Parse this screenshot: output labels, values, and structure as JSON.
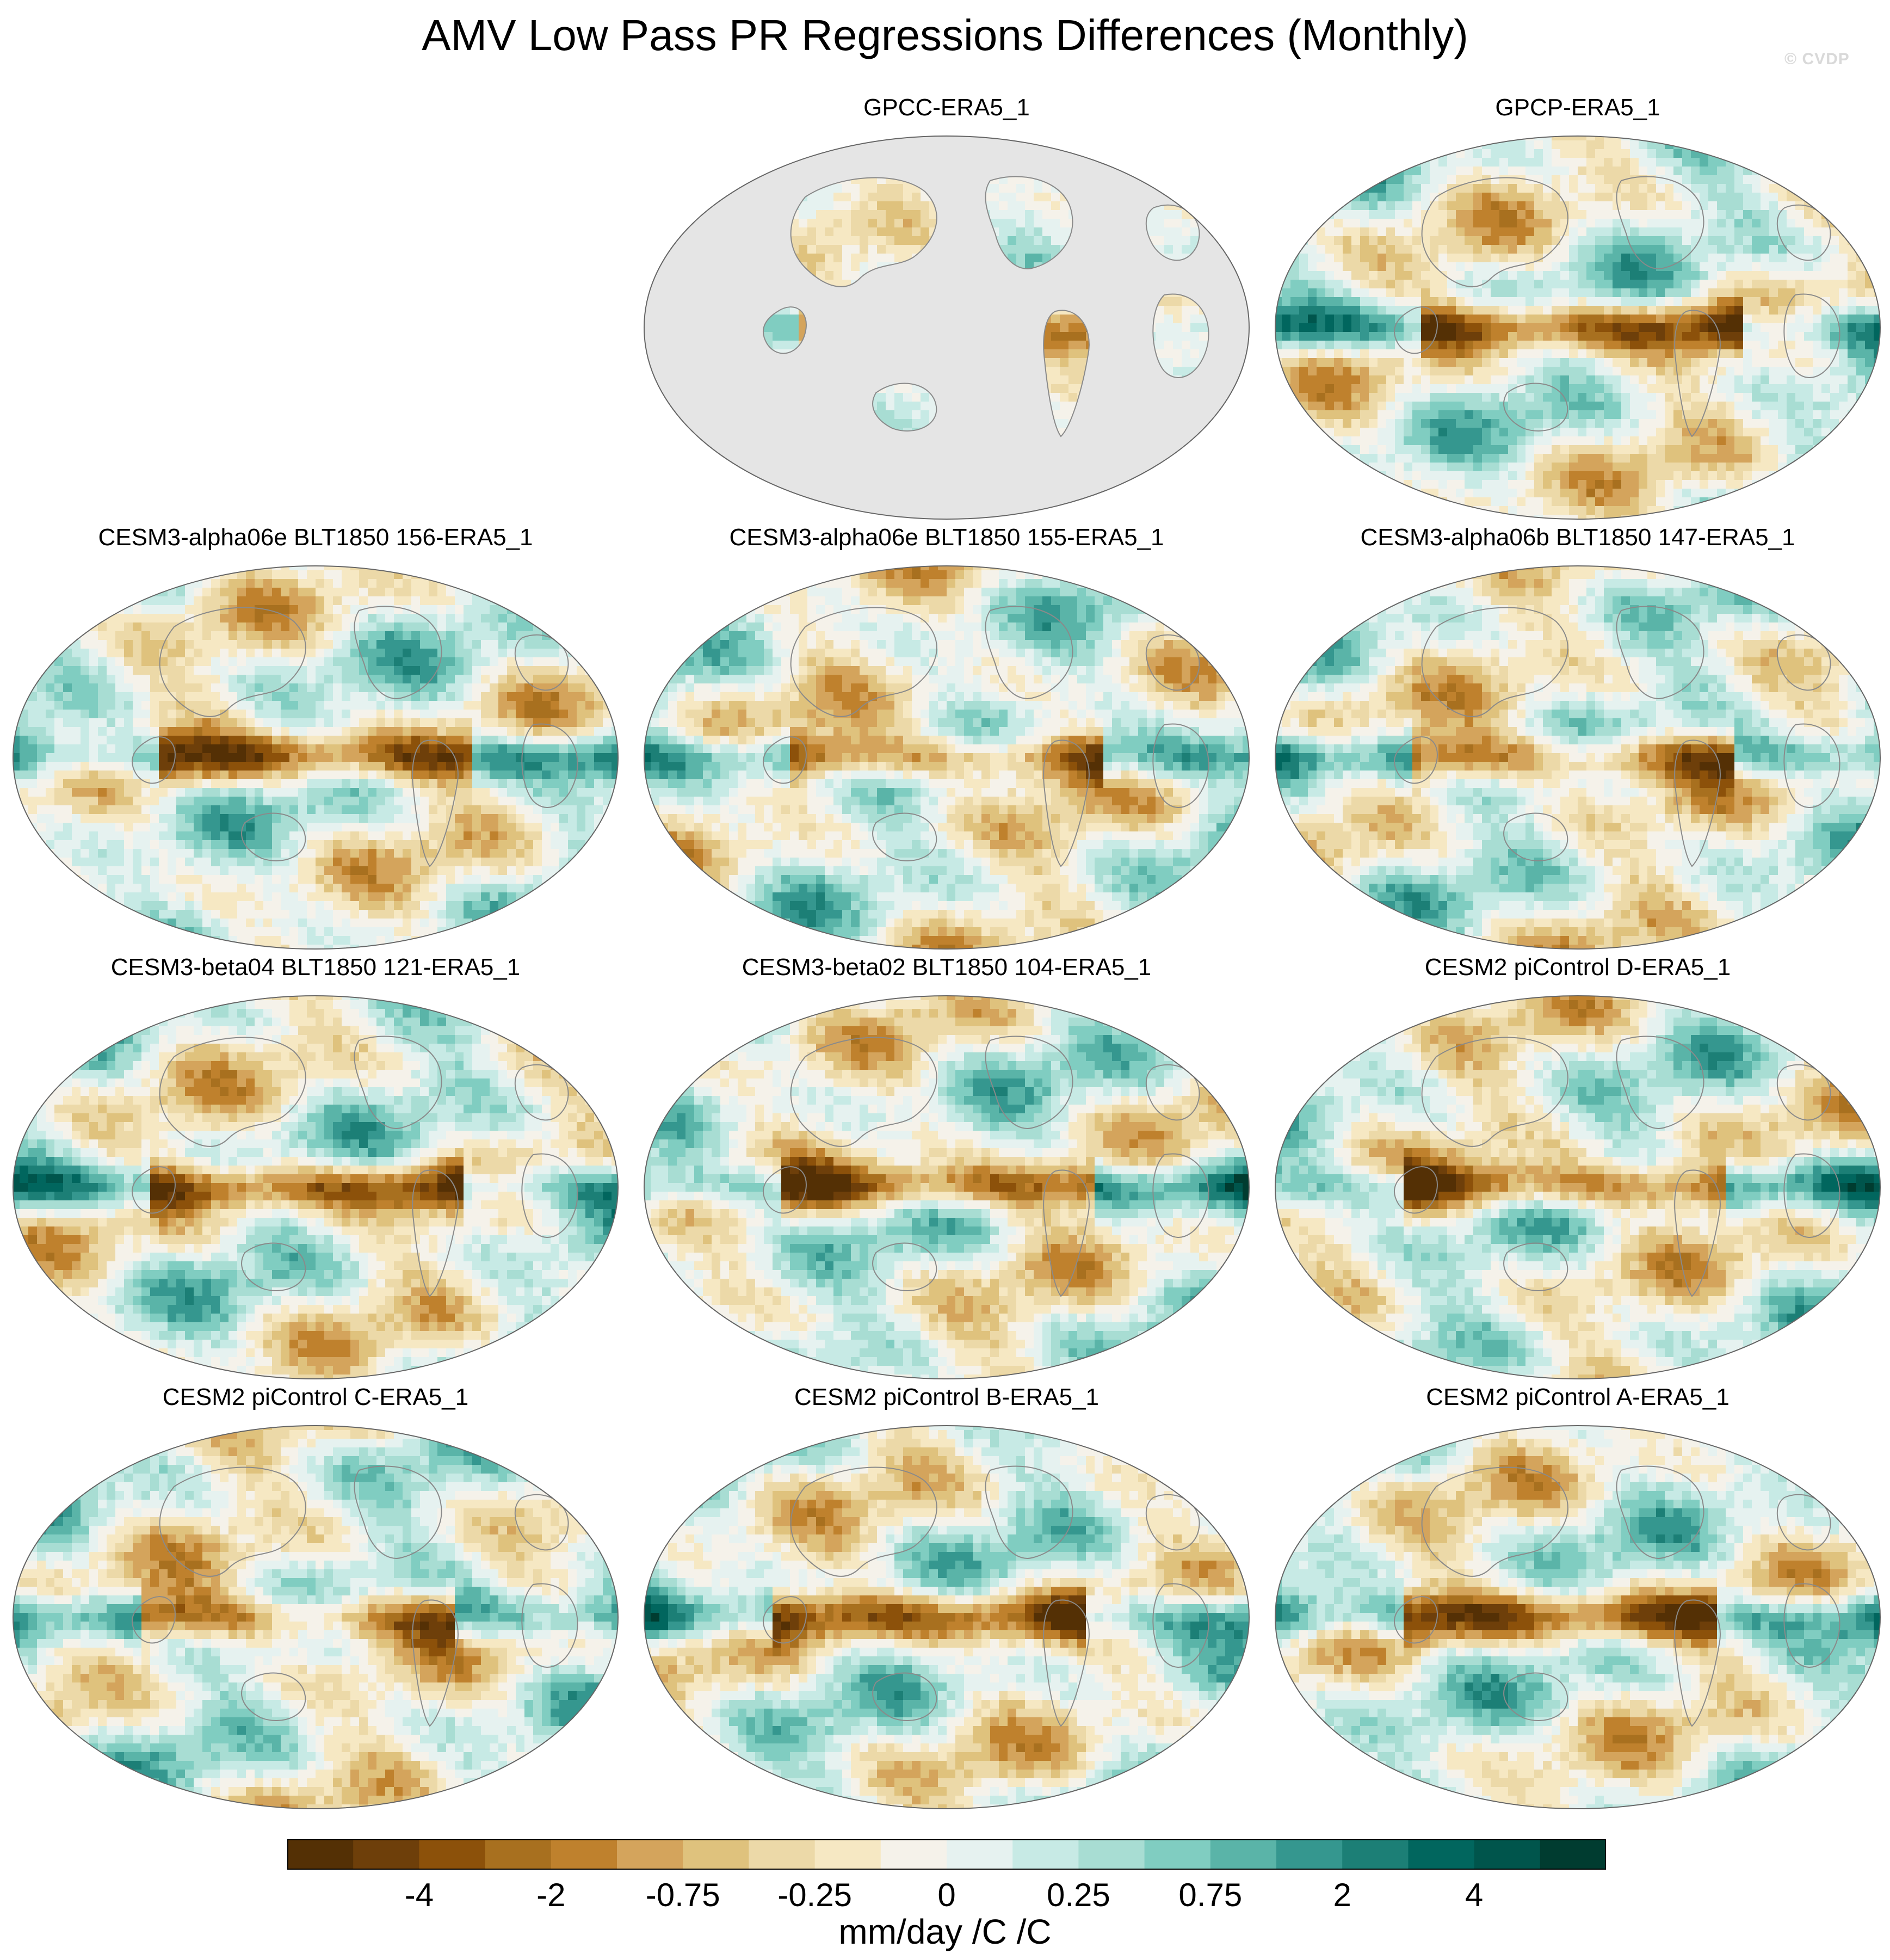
{
  "title": "AMV Low Pass PR Regressions Differences (Monthly)",
  "watermark": "© CVDP",
  "panels": [
    {
      "label": "GPCC-ERA5_1",
      "dataset": "gpcc",
      "seed": 11,
      "land_only": true
    },
    {
      "label": "GPCP-ERA5_1",
      "dataset": "gpcp",
      "seed": 23,
      "land_only": false
    },
    {
      "label": "CESM3-alpha06e BLT1850 156-ERA5_1",
      "seed": 37,
      "land_only": false
    },
    {
      "label": "CESM3-alpha06e BLT1850 155-ERA5_1",
      "seed": 41,
      "land_only": false
    },
    {
      "label": "CESM3-alpha06b BLT1850 147-ERA5_1",
      "seed": 53,
      "land_only": false
    },
    {
      "label": "CESM3-beta04 BLT1850 121-ERA5_1",
      "seed": 67,
      "land_only": false
    },
    {
      "label": "CESM3-beta02 BLT1850 104-ERA5_1",
      "seed": 71,
      "land_only": false
    },
    {
      "label": "CESM2 piControl D-ERA5_1",
      "seed": 83,
      "land_only": false
    },
    {
      "label": "CESM2 piControl C-ERA5_1",
      "seed": 97,
      "land_only": false
    },
    {
      "label": "CESM2 piControl B-ERA5_1",
      "seed": 101,
      "land_only": false
    },
    {
      "label": "CESM2 piControl A-ERA5_1",
      "seed": 113,
      "land_only": false
    }
  ],
  "colorbar": {
    "units": "mm/day /C /C",
    "tick_labels": [
      "-4",
      "-2",
      "-0.75",
      "-0.25",
      "0",
      "0.25",
      "0.75",
      "2",
      "4"
    ],
    "colors": [
      "#543005",
      "#6e3f0a",
      "#8c510a",
      "#a8701f",
      "#bf812d",
      "#d4a45c",
      "#dfc27d",
      "#ecd9a8",
      "#f6e8c3",
      "#f5f2ea",
      "#e6f2f0",
      "#c7eae5",
      "#a8ddd3",
      "#80cdc1",
      "#5ab4a8",
      "#35978f",
      "#1c7f76",
      "#01665e",
      "#00554c",
      "#003c30"
    ],
    "missing_color": "#e5e5e5"
  }
}
